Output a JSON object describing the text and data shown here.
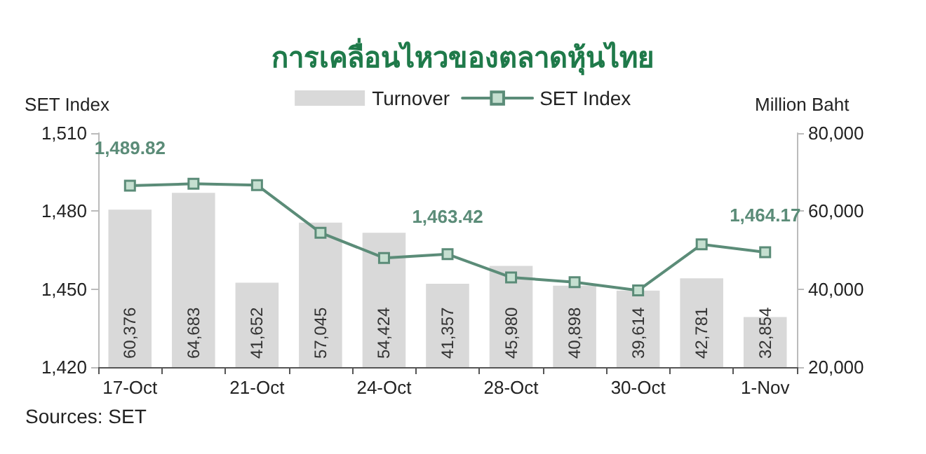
{
  "chart_data": {
    "type": "bar",
    "title": "การเคลื่อนไหวของตลาดหุ้นไทย",
    "ylabel": "SET Index",
    "y2label": "Million Baht",
    "categories": [
      "17-Oct",
      null,
      "21-Oct",
      null,
      "24-Oct",
      null,
      "28-Oct",
      null,
      "30-Oct",
      null,
      "1-Nov"
    ],
    "series": [
      {
        "name": "Turnover",
        "axis": "y2",
        "color": "#d9d9d9",
        "values": [
          60376,
          64683,
          41652,
          57045,
          54424,
          41357,
          45980,
          40898,
          39614,
          42781,
          32854
        ],
        "value_labels": [
          "60,376",
          "64,683",
          "41,652",
          "57,045",
          "54,424",
          "41,357",
          "45,980",
          "40,898",
          "39,614",
          "42,781",
          "32,854"
        ]
      },
      {
        "name": "SET Index",
        "type": "line",
        "axis": "y",
        "color": "#5b8c78",
        "marker": "square",
        "values": [
          1489.82,
          1490.5,
          1490,
          1471.7,
          1462,
          1463.42,
          1454.5,
          1452.7,
          1449.5,
          1467.2,
          1464.17
        ],
        "value_labels": [
          "1,489.82",
          null,
          null,
          null,
          null,
          "1,463.42",
          null,
          null,
          null,
          null,
          "1,464.17"
        ]
      }
    ],
    "ylim": [
      1420,
      1510
    ],
    "yticks": [
      {
        "value": 1420,
        "label": "1,420"
      },
      {
        "value": 1450,
        "label": "1,450"
      },
      {
        "value": 1480,
        "label": "1,480"
      },
      {
        "value": 1510,
        "label": "1,510"
      }
    ],
    "y2lim": [
      20000,
      80000
    ],
    "y2ticks": [
      {
        "value": 20000,
        "label": "20,000"
      },
      {
        "value": 40000,
        "label": "40,000"
      },
      {
        "value": 60000,
        "label": "60,000"
      },
      {
        "value": 80000,
        "label": "80,000"
      }
    ],
    "grid": false,
    "legend": "top",
    "annotations": [
      "Sources: SET"
    ]
  }
}
